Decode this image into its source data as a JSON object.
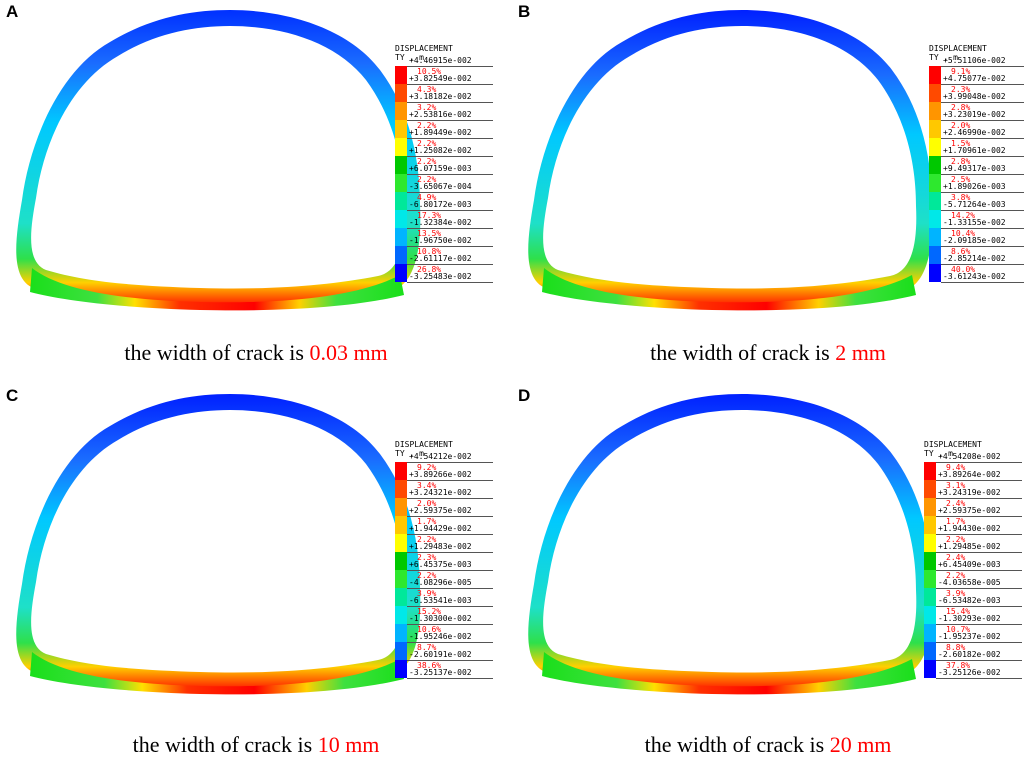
{
  "panels": [
    {
      "letter": "A",
      "legend_title": "DISPLACEMENT",
      "legend_sub": "TY , m",
      "levels": [
        "+4.46915e-002",
        "+3.82549e-002",
        "+3.18182e-002",
        "+2.53816e-002",
        "+1.89449e-002",
        "+1.25082e-002",
        "+6.07159e-003",
        "-3.65067e-004",
        "-6.80172e-003",
        "-1.32384e-002",
        "-1.96750e-002",
        "-2.61117e-002",
        "-3.25483e-002"
      ],
      "percents": [
        "10.5%",
        "4.3%",
        "3.2%",
        "2.2%",
        "2.2%",
        "2.2%",
        "2.2%",
        "4.9%",
        "17.3%",
        "13.5%",
        "10.8%",
        "26.8%"
      ],
      "caption_prefix": "the width of crack is ",
      "caption_value": "0.03 mm"
    },
    {
      "letter": "B",
      "legend_title": "DISPLACEMENT",
      "legend_sub": "TY , m",
      "levels": [
        "+5.51106e-002",
        "+4.75077e-002",
        "+3.99048e-002",
        "+3.23019e-002",
        "+2.46990e-002",
        "+1.70961e-002",
        "+9.49317e-003",
        "+1.89026e-003",
        "-5.71264e-003",
        "-1.33155e-002",
        "-2.09185e-002",
        "-2.85214e-002",
        "-3.61243e-002"
      ],
      "percents": [
        "9.1%",
        "2.3%",
        "2.8%",
        "2.0%",
        "1.5%",
        "2.8%",
        "2.5%",
        "3.8%",
        "14.2%",
        "10.4%",
        "8.6%",
        "40.0%"
      ],
      "caption_prefix": "the width of crack is ",
      "caption_value": "2 mm"
    },
    {
      "letter": "C",
      "legend_title": "DISPLACEMENT",
      "legend_sub": "TY , m",
      "levels": [
        "+4.54212e-002",
        "+3.89266e-002",
        "+3.24321e-002",
        "+2.59375e-002",
        "+1.94429e-002",
        "+1.29483e-002",
        "+6.45375e-003",
        "-4.08296e-005",
        "-6.53541e-003",
        "-1.30300e-002",
        "-1.95246e-002",
        "-2.60191e-002",
        "-3.25137e-002"
      ],
      "percents": [
        "9.2%",
        "3.4%",
        "2.0%",
        "1.7%",
        "2.2%",
        "2.3%",
        "2.2%",
        "3.9%",
        "15.2%",
        "10.6%",
        "8.7%",
        "38.6%"
      ],
      "caption_prefix": "the width of crack is ",
      "caption_value": "10 mm"
    },
    {
      "letter": "D",
      "legend_title": "DISPLACEMENT",
      "legend_sub": "TY , m",
      "levels": [
        "+4.54208e-002",
        "+3.89264e-002",
        "+3.24319e-002",
        "+2.59375e-002",
        "+1.94430e-002",
        "+1.29485e-002",
        "+6.45409e-003",
        "-4.03658e-005",
        "-6.53482e-003",
        "-1.30293e-002",
        "-1.95237e-002",
        "-2.60182e-002",
        "-3.25126e-002"
      ],
      "percents": [
        "9.4%",
        "3.1%",
        "2.4%",
        "1.7%",
        "2.2%",
        "2.4%",
        "2.2%",
        "3.9%",
        "15.4%",
        "10.7%",
        "8.8%",
        "37.8%"
      ],
      "caption_prefix": "the width of crack is ",
      "caption_value": "20 mm"
    }
  ],
  "colors": {
    "scale": [
      "#ff0000",
      "#ff4a00",
      "#ff9500",
      "#ffc800",
      "#ffff00",
      "#00c800",
      "#1adf1a",
      "#2ee82e",
      "#00e89a",
      "#00e8e8",
      "#00b4ff",
      "#0068ff",
      "#0000ff"
    ],
    "caption_highlight": "#ff0000",
    "percent_text": "#ff0000"
  }
}
